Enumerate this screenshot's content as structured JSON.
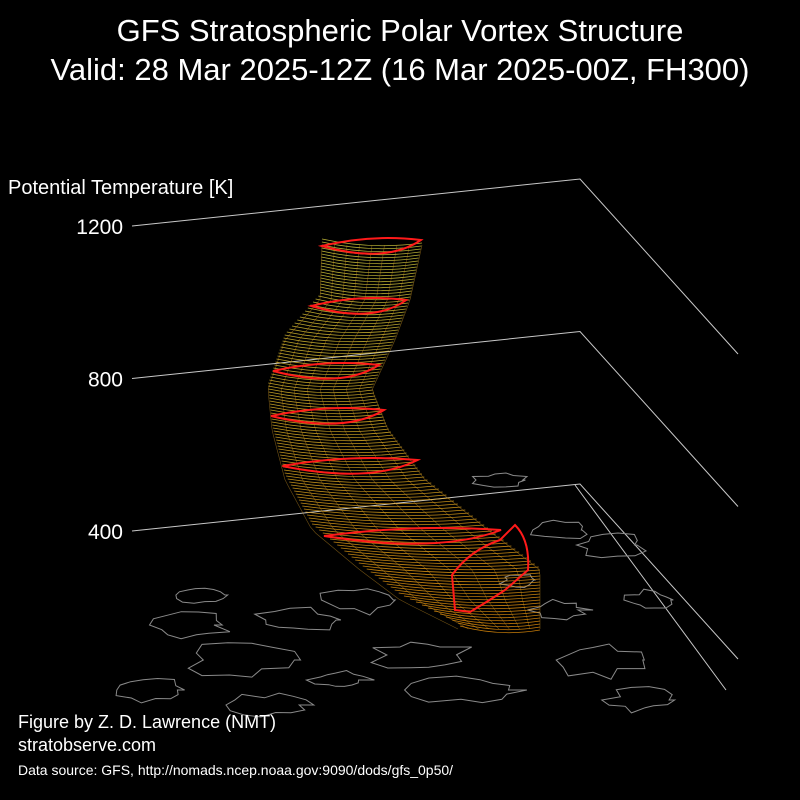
{
  "header": {
    "title": "GFS Stratospheric Polar Vortex Structure",
    "subtitle": "Valid: 28 Mar 2025-12Z  (16 Mar 2025-00Z, FH300)"
  },
  "chart_data": {
    "type": "3d-isosurface",
    "zlabel": "Potential Temperature [K]",
    "z_ticks": [
      400,
      800,
      1200
    ],
    "z_tick_labels": [
      "400",
      "800",
      "1200"
    ],
    "zlim": [
      200,
      1300
    ],
    "vortex_color_low": "#e8900a",
    "vortex_color_high": "#d8d040",
    "contour_color": "#ff1a1a",
    "map_color": "#8a8a8a",
    "grid_color": "#c8c8c8"
  },
  "footer": {
    "credit": "Figure by Z. D. Lawrence (NMT)",
    "website": "stratobserve.com",
    "data_source": "Data source: GFS, http://nomads.ncep.noaa.gov:9090/dods/gfs_0p50/"
  }
}
